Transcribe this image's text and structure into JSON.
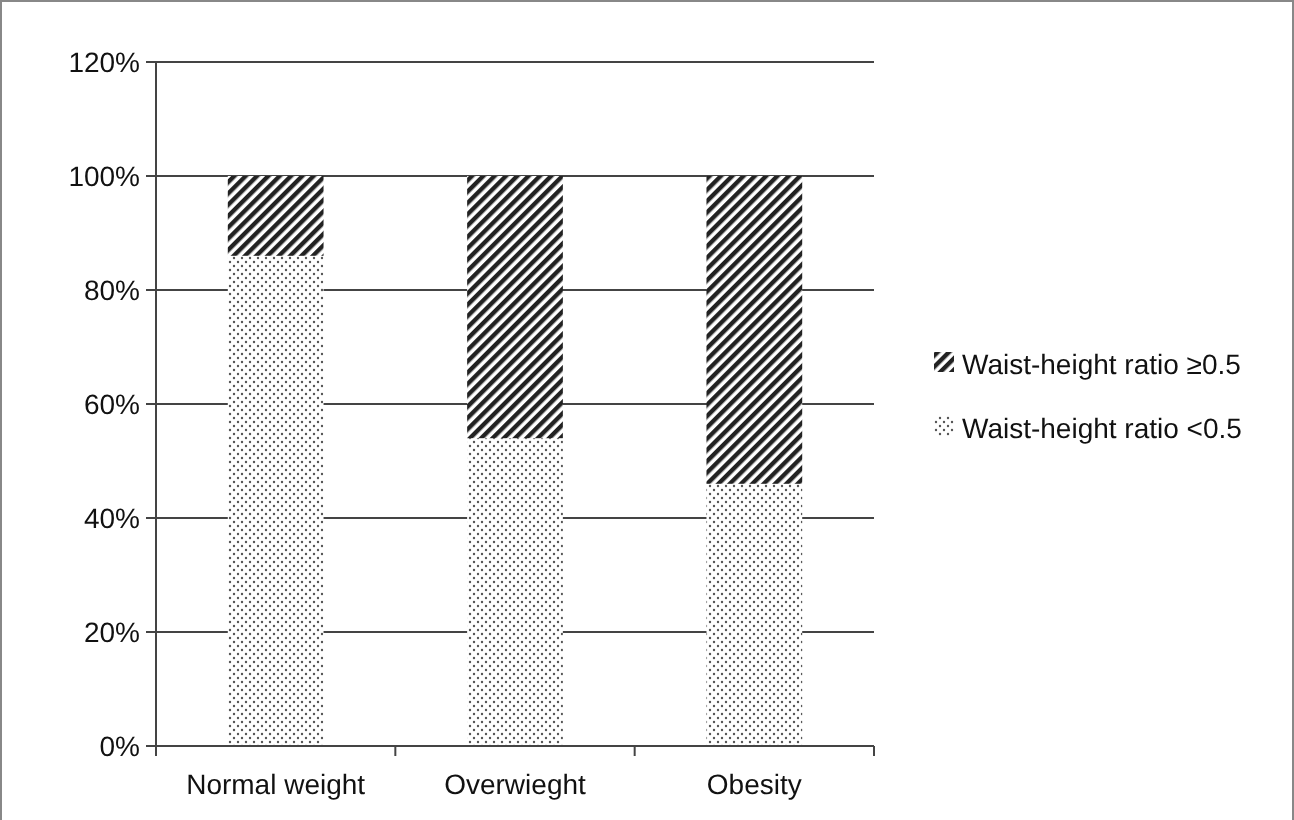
{
  "chart_data": {
    "type": "bar",
    "stacked": true,
    "categories": [
      "Normal weight",
      "Overwieght",
      "Obesity"
    ],
    "series": [
      {
        "name": "Waist-height ratio <0.5",
        "color": "#555555",
        "values": [
          86,
          54,
          46
        ]
      },
      {
        "name": "Waist-height ratio ≥0.5",
        "color": "#222222",
        "values": [
          14,
          46,
          54
        ]
      }
    ],
    "ylim": [
      0,
      120
    ],
    "yticks": [
      {
        "value": 0,
        "label": "0%"
      },
      {
        "value": 20,
        "label": "20%"
      },
      {
        "value": 40,
        "label": "40%"
      },
      {
        "value": 60,
        "label": "60%"
      },
      {
        "value": 80,
        "label": "80%"
      },
      {
        "value": 100,
        "label": "100%"
      },
      {
        "value": 120,
        "label": "120%"
      }
    ],
    "grid": "y",
    "legend": "right"
  }
}
